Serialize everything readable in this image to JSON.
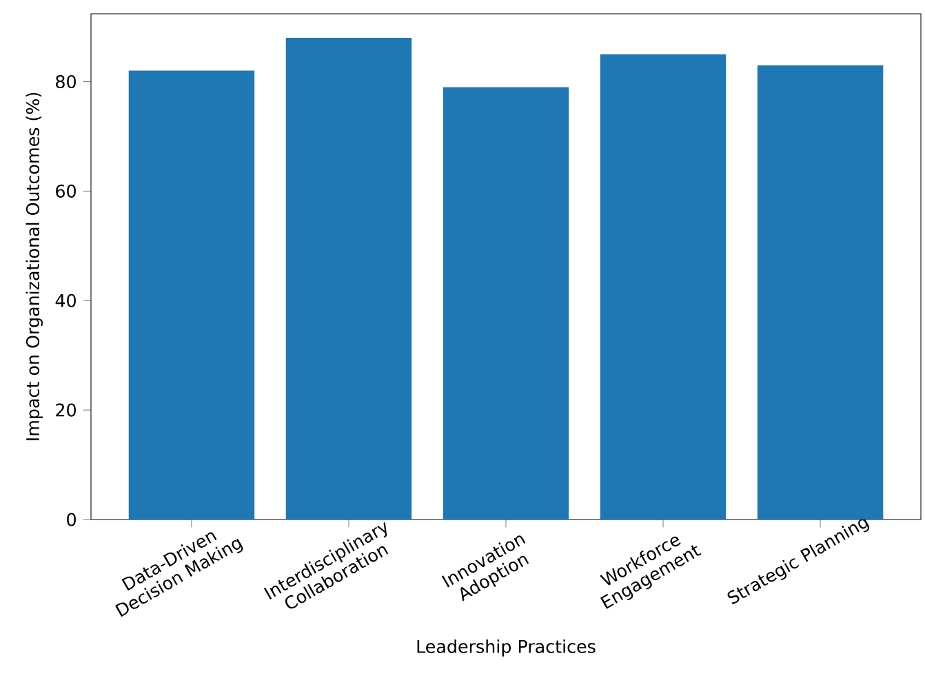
{
  "chart_data": {
    "type": "bar",
    "xlabel": "Leadership Practices",
    "ylabel": "Impact on Organizational Outcomes (%)",
    "categories": [
      "Data-Driven Decision Making",
      "Interdisciplinary Collaboration",
      "Innovation Adoption",
      "Workforce Engagement",
      "Strategic Planning"
    ],
    "values": [
      82,
      88,
      79,
      85,
      83
    ],
    "color": "#1f77b4",
    "ylim": [
      0,
      92.4
    ],
    "yticks": [
      0,
      20,
      40,
      60,
      80
    ]
  }
}
